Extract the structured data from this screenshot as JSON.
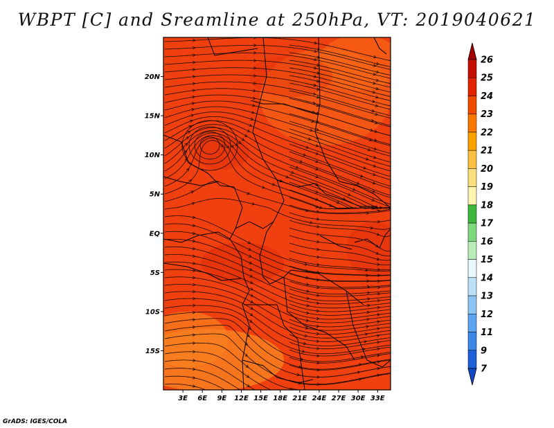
{
  "title": "WBPT [C] and Sreamline at 250hPa, VT: 2019040621",
  "credit": "GrADS: IGES/COLA",
  "map": {
    "lat_labels": [
      "20N",
      "15N",
      "10N",
      "5N",
      "EQ",
      "5S",
      "10S",
      "15S"
    ],
    "lat_values": [
      20,
      15,
      10,
      5,
      0,
      -5,
      -10,
      -15
    ],
    "lon_labels": [
      "3E",
      "6E",
      "9E",
      "12E",
      "15E",
      "18E",
      "21E",
      "24E",
      "27E",
      "30E",
      "33E"
    ],
    "lon_values": [
      3,
      6,
      9,
      12,
      15,
      18,
      21,
      24,
      27,
      30,
      33
    ],
    "lon_range": [
      0,
      35
    ],
    "lat_range": [
      -20,
      25
    ]
  },
  "colorbar": {
    "labels": [
      "26",
      "25",
      "24",
      "23",
      "22",
      "21",
      "20",
      "19",
      "18",
      "17",
      "16",
      "15",
      "14",
      "13",
      "12",
      "11",
      "9",
      "7"
    ],
    "colors": [
      "#a50000",
      "#c41000",
      "#e02500",
      "#f04d00",
      "#f87800",
      "#fca000",
      "#fcc040",
      "#fce080",
      "#fcf4b0",
      "#3cb83c",
      "#7ed87e",
      "#b8ecb8",
      "#e8f8fc",
      "#bce0f8",
      "#8cc4f4",
      "#5aa4f0",
      "#3c88e8",
      "#1e60d8",
      "#1448c8"
    ]
  },
  "field_colors": {
    "main": "#f04010",
    "warm": "#e02d08",
    "cool": "#f86a18",
    "south": "#f88020"
  }
}
